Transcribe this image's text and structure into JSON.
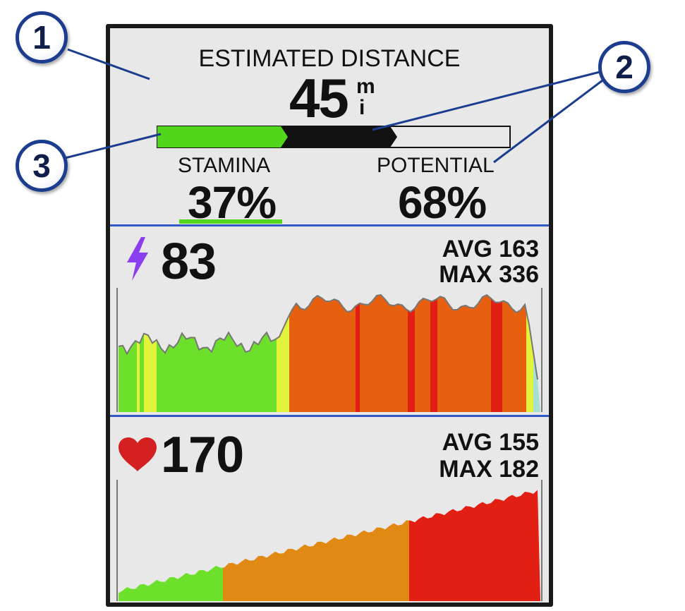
{
  "estimate": {
    "title": "ESTIMATED DISTANCE",
    "value": "45",
    "unit_top": "m",
    "unit_bottom": "i",
    "stamina_fraction": 0.37,
    "potential_fraction": 0.68
  },
  "stamina": {
    "label": "STAMINA",
    "value": "37%"
  },
  "potential": {
    "label": "POTENTIAL",
    "value": "68%"
  },
  "power": {
    "icon": "lightning-bolt-icon",
    "current": "83",
    "avg": "AVG 163",
    "max": "MAX 336"
  },
  "heart_rate": {
    "icon": "heart-icon",
    "current": "170",
    "avg": "AVG 155",
    "max": "MAX 182"
  },
  "callouts": {
    "one": "1",
    "two": "2",
    "three": "3"
  },
  "colors": {
    "stamina_bar": "#52d61c",
    "potential_bar": "#111111",
    "divider": "#3358c8",
    "power_icon": "#8b3ef0",
    "heart_icon": "#d42020",
    "zone_green": "#6ce02a",
    "zone_yellow": "#e3f23a",
    "zone_orange": "#e6600f",
    "zone_red": "#e11f12",
    "hr_orange": "#e08a14"
  }
}
